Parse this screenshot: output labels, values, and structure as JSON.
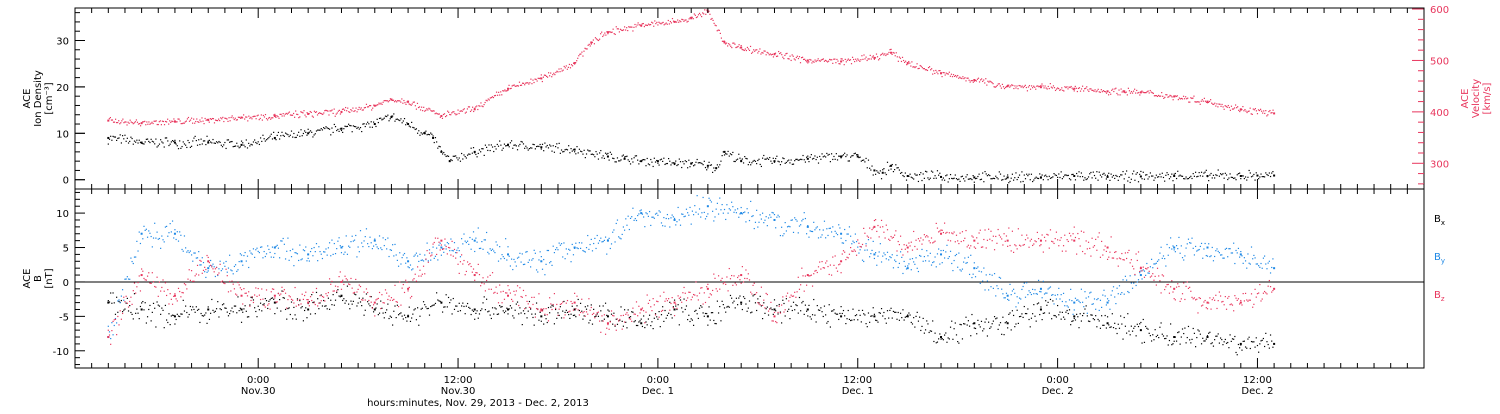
{
  "colors": {
    "black": "#000000",
    "red": "#e8365d",
    "blue": "#1e88e5",
    "axis_right": "#e8365d"
  },
  "chart_data": [
    {
      "type": "scatter",
      "panel": "top",
      "left_axis": {
        "label_lines": [
          "ACE",
          "Ion Density",
          "[cm⁻³]"
        ],
        "ylim": [
          -2,
          37
        ],
        "ticks": [
          0,
          10,
          20,
          30
        ]
      },
      "right_axis": {
        "label_lines": [
          "ACE",
          "Velocity",
          "[km/s]"
        ],
        "ylim": [
          250,
          602
        ],
        "ticks": [
          300,
          400,
          500,
          600
        ]
      },
      "series": [
        {
          "name": "ACE Ion Density",
          "axis": "left",
          "color": "#000000",
          "x": [
            -9,
            -7,
            -5,
            -3,
            -1,
            1,
            3,
            5,
            7,
            8,
            9,
            10,
            10.5,
            11,
            11.5,
            13,
            15,
            17,
            19,
            21,
            22,
            23,
            24,
            25,
            26,
            27,
            27.5,
            28,
            29,
            31,
            33,
            35,
            36,
            37,
            37.5,
            38,
            39,
            41,
            43,
            45,
            47,
            49,
            51,
            53,
            55,
            57,
            59,
            60,
            61
          ],
          "values": [
            9,
            8,
            8,
            8,
            7.5,
            9,
            10,
            11,
            12,
            13.5,
            12,
            10,
            9,
            6,
            4,
            6,
            7.5,
            7,
            6.5,
            5,
            4.5,
            4,
            4,
            3.5,
            3.5,
            3,
            2.5,
            6,
            4,
            4,
            4.5,
            5,
            5,
            2,
            1.5,
            3,
            0.8,
            0.6,
            0.5,
            0.5,
            0.5,
            0.8,
            0.6,
            0.7,
            0.8,
            0.8,
            0.8,
            0.9,
            0.9
          ]
        },
        {
          "name": "ACE Velocity",
          "axis": "right",
          "color": "#e8365d",
          "x": [
            -9,
            -7,
            -5,
            -3,
            -1,
            1,
            3,
            5,
            7,
            8,
            9,
            11,
            13,
            15,
            17,
            19,
            20,
            21,
            23,
            25,
            26,
            27,
            28,
            29,
            31,
            33,
            35,
            37,
            38,
            39,
            41,
            43,
            45,
            47,
            49,
            51,
            52,
            53,
            55,
            57,
            59,
            61
          ],
          "values": [
            383,
            378,
            381,
            384,
            389,
            392,
            396,
            400,
            412,
            424,
            420,
            392,
            405,
            445,
            465,
            495,
            535,
            555,
            568,
            575,
            582,
            595,
            535,
            525,
            512,
            500,
            498,
            505,
            515,
            495,
            475,
            462,
            450,
            448,
            445,
            440,
            440,
            438,
            430,
            420,
            405,
            397
          ]
        }
      ]
    },
    {
      "type": "scatter",
      "panel": "bottom",
      "left_axis": {
        "label_lines": [
          "ACE",
          "B",
          "[nT]"
        ],
        "ylim": [
          -12.5,
          13.5
        ],
        "ticks": [
          -10,
          -5,
          0,
          5,
          10
        ]
      },
      "zero_line": true,
      "series": [
        {
          "name": "Bx",
          "legend_base": "B",
          "legend_sub": "x",
          "color": "#000000",
          "x": [
            -9,
            -7,
            -5,
            -3,
            -1,
            1,
            3,
            5,
            7,
            9,
            11,
            13,
            15,
            17,
            19,
            21,
            23,
            25,
            27,
            29,
            31,
            33,
            35,
            37,
            39,
            41,
            43,
            45,
            47,
            49,
            51,
            53,
            55,
            57,
            59,
            61
          ],
          "values": [
            -3,
            -4,
            -5,
            -4,
            -4,
            -3,
            -4,
            -2,
            -4,
            -5,
            -3,
            -4,
            -4,
            -5,
            -4,
            -5,
            -6,
            -4,
            -5,
            -3,
            -4,
            -4,
            -5,
            -5,
            -5,
            -8,
            -6,
            -6,
            -4,
            -5,
            -6,
            -7,
            -8,
            -8,
            -9,
            -9
          ]
        },
        {
          "name": "By",
          "legend_base": "B",
          "legend_sub": "y",
          "color": "#1e88e5",
          "x": [
            -9,
            -7,
            -5,
            -3,
            -1,
            1,
            3,
            5,
            7,
            9,
            11,
            13,
            15,
            17,
            19,
            21,
            23,
            25,
            27,
            29,
            31,
            33,
            35,
            37,
            39,
            41,
            43,
            45,
            47,
            49,
            51,
            53,
            55,
            57,
            59,
            61
          ],
          "values": [
            -8,
            7,
            7,
            2,
            3,
            5,
            4,
            5,
            6,
            3,
            5,
            6,
            4,
            3,
            5,
            6,
            10,
            9,
            11,
            10,
            9,
            8,
            7,
            4,
            2,
            4,
            2,
            -2,
            -1,
            -3,
            -3,
            1,
            5,
            5,
            4,
            2
          ]
        },
        {
          "name": "Bz",
          "legend_base": "B",
          "legend_sub": "z",
          "color": "#e8365d",
          "x": [
            -9,
            -7,
            -5,
            -3,
            -1,
            1,
            3,
            5,
            7,
            9,
            11,
            13,
            15,
            17,
            19,
            21,
            23,
            25,
            27,
            29,
            31,
            33,
            35,
            37,
            39,
            41,
            43,
            45,
            47,
            49,
            51,
            53,
            55,
            57,
            59,
            61
          ],
          "values": [
            -8,
            1,
            -2,
            3,
            -2,
            -2,
            -3,
            0,
            -3,
            -1,
            6,
            1,
            -2,
            -4,
            -3,
            -6,
            -4,
            -3,
            -1,
            1,
            -5,
            1,
            3,
            8,
            5,
            7,
            6,
            6,
            6,
            6,
            5,
            2,
            -1,
            -3,
            -3,
            -1
          ]
        }
      ]
    }
  ],
  "x_axis": {
    "xlim": [
      -11,
      70
    ],
    "ticks": [
      {
        "x": 0,
        "time": "0:00",
        "date": "Nov.30"
      },
      {
        "x": 12,
        "time": "12:00",
        "date": "Nov.30"
      },
      {
        "x": 24,
        "time": "0:00",
        "date": "Dec. 1"
      },
      {
        "x": 36,
        "time": "12:00",
        "date": "Dec. 1"
      },
      {
        "x": 48,
        "time": "0:00",
        "date": "Dec. 2"
      },
      {
        "x": 60,
        "time": "12:00",
        "date": "Dec. 2"
      }
    ],
    "title": "hours:minutes, Nov. 29, 2013 - Dec. 2, 2013"
  }
}
